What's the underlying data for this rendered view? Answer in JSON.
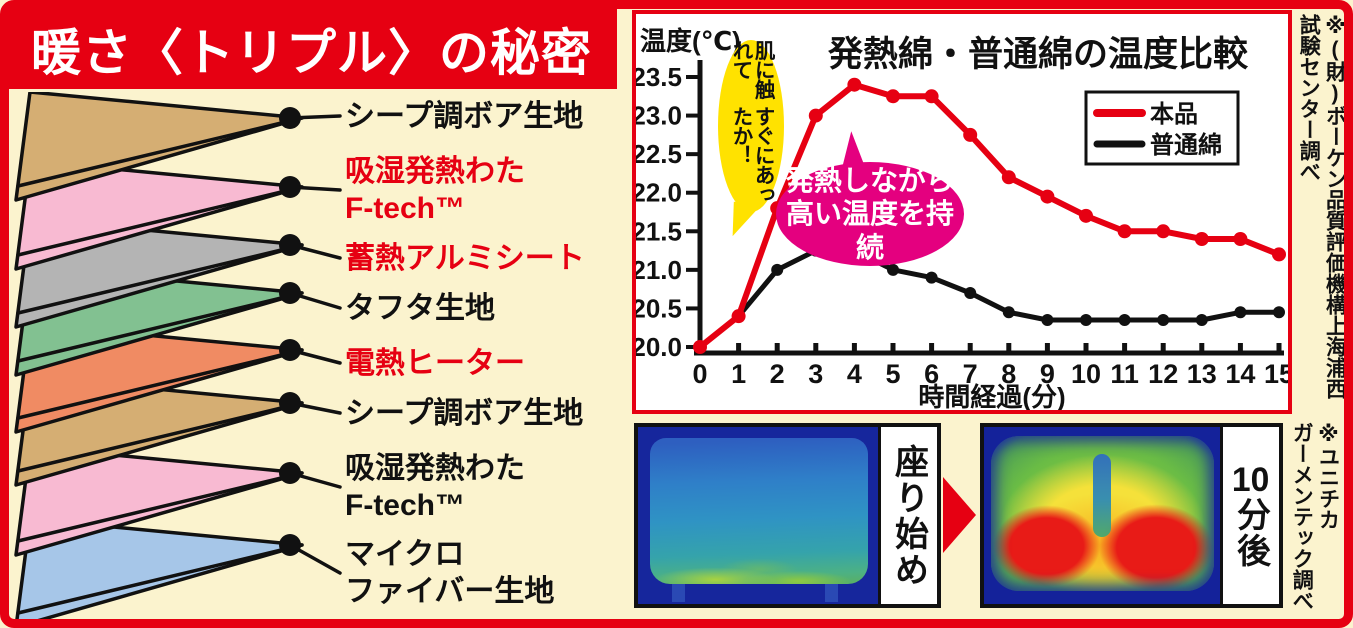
{
  "left_panel": {
    "title": "暖さ〈トリプル〉の秘密",
    "layers": [
      {
        "lines": [
          "シープ調ボア生地"
        ],
        "color": "#D5AE73",
        "text_color": "#111111"
      },
      {
        "lines": [
          "吸湿発熱わた",
          "F-tech™"
        ],
        "color": "#F8BAD2",
        "text_color": "#E60012"
      },
      {
        "lines": [
          "蓄熱アルミシート"
        ],
        "color": "#B4B4B4",
        "text_color": "#E60012"
      },
      {
        "lines": [
          "タフタ生地"
        ],
        "color": "#82C191",
        "text_color": "#111111"
      },
      {
        "lines": [
          "電熱ヒーター"
        ],
        "color": "#F08B63",
        "text_color": "#E60012"
      },
      {
        "lines": [
          "シープ調ボア生地"
        ],
        "color": "#D5AE73",
        "text_color": "#111111"
      },
      {
        "lines": [
          "吸湿発熱わた",
          "F-tech™"
        ],
        "color": "#F8BAD2",
        "text_color": "#111111"
      },
      {
        "lines": [
          "マイクロ",
          "ファイバー生地"
        ],
        "color": "#A6C6E8",
        "text_color": "#111111"
      }
    ]
  },
  "chart_data": {
    "type": "line",
    "title": "発熱綿・普通綿の温度比較",
    "ylabel": "温度(℃)",
    "xlabel": "時間経過(分)",
    "x": [
      0,
      1,
      2,
      3,
      4,
      5,
      6,
      7,
      8,
      9,
      10,
      11,
      12,
      13,
      14,
      15
    ],
    "ylim": [
      20.0,
      23.5
    ],
    "ytick_step": 0.5,
    "grid": false,
    "legend_position": "top-right",
    "series": [
      {
        "name": "本品",
        "color": "#E60012",
        "values": [
          20.0,
          20.4,
          21.8,
          23.0,
          23.4,
          23.25,
          23.25,
          22.75,
          22.2,
          21.95,
          21.7,
          21.5,
          21.5,
          21.4,
          21.4,
          21.2
        ]
      },
      {
        "name": "普通綿",
        "color": "#111111",
        "values": [
          20.0,
          20.4,
          21.0,
          21.25,
          21.25,
          21.0,
          20.9,
          20.7,
          20.45,
          20.35,
          20.35,
          20.35,
          20.35,
          20.35,
          20.45,
          20.45
        ]
      }
    ],
    "annotations": [
      {
        "style": "yellow-balloon",
        "text_lines": [
          "肌に触れて",
          "すぐにあったか！"
        ]
      },
      {
        "style": "pink-balloon",
        "text_lines": [
          "発熱しながら",
          "高い温度を持続"
        ]
      }
    ],
    "source_note_lines": [
      "※(財)ボーケン品質評価機構上海浦西",
      "試験センター調べ"
    ]
  },
  "thermal": {
    "before_label": "座り始め",
    "after_label_number": "10",
    "after_label_suffix": "分後",
    "source_note_lines": [
      "※ユニチカ",
      "ガーメンテック調べ"
    ]
  },
  "colors": {
    "background": "#FBF3CE",
    "accent_red": "#E60012",
    "balloon_yellow": "#FFE200",
    "balloon_pink": "#E4007F"
  }
}
